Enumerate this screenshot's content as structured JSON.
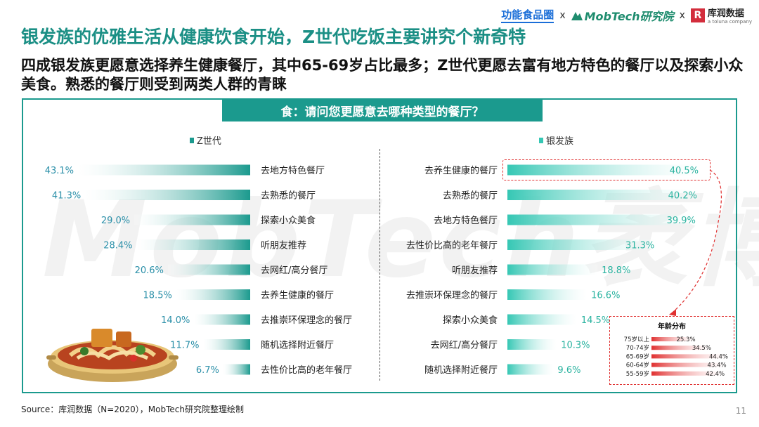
{
  "header": {
    "logos": [
      {
        "name": "功能食品圈"
      },
      {
        "name": "MobTech研究院"
      },
      {
        "name": "库润数据",
        "sub": "a toluna company"
      }
    ],
    "separator": "x",
    "title": "银发族的优雅生活从健康饮食开始，Z世代吃饭主要讲究个新奇特",
    "subtitle": "四成银发族更愿意选择养生健康餐厅，其中65-69岁占比最多；Z世代更愿去富有地方特色的餐厅以及探索小众美食。熟悉的餐厅则受到两类人群的青睐"
  },
  "question": "食：请问您更愿意去哪种类型的餐厅？",
  "watermark": "MobTech袤博",
  "chart_data": [
    {
      "type": "bar",
      "orientation": "horizontal",
      "series_name": "Z世代",
      "unit": "%",
      "categories": [
        "去地方特色餐厅",
        "去熟悉的餐厅",
        "探索小众美食",
        "听朋友推荐",
        "去网红/高分餐厅",
        "去养生健康的餐厅",
        "去推崇环保理念的餐厅",
        "随机选择附近餐厅",
        "去性价比高的老年餐厅"
      ],
      "values": [
        43.1,
        41.3,
        29.0,
        28.4,
        20.6,
        18.5,
        14.0,
        11.7,
        6.7
      ],
      "labels": [
        "43.1%",
        "41.3%",
        "29.0%",
        "28.4%",
        "20.6%",
        "18.5%",
        "14.0%",
        "11.7%",
        "6.7%"
      ],
      "color": "#1b9a8e"
    },
    {
      "type": "bar",
      "orientation": "horizontal",
      "series_name": "银发族",
      "unit": "%",
      "categories": [
        "去养生健康的餐厅",
        "去熟悉的餐厅",
        "去地方特色餐厅",
        "去性价比高的老年餐厅",
        "听朋友推荐",
        "去推崇环保理念的餐厅",
        "探索小众美食",
        "去网红/高分餐厅",
        "随机选择附近餐厅"
      ],
      "values": [
        40.5,
        40.2,
        39.9,
        31.3,
        18.8,
        16.6,
        14.5,
        10.3,
        9.6
      ],
      "labels": [
        "40.5%",
        "40.2%",
        "39.9%",
        "31.3%",
        "18.8%",
        "16.6%",
        "14.5%",
        "10.3%",
        "9.6%"
      ],
      "color": "#35c7b4"
    },
    {
      "type": "bar",
      "orientation": "horizontal",
      "title": "年龄分布",
      "unit": "%",
      "categories": [
        "75岁以上",
        "70-74岁",
        "65-69岁",
        "60-64岁",
        "55-59岁"
      ],
      "values": [
        25.3,
        34.5,
        44.4,
        43.4,
        42.4
      ],
      "labels": [
        "25.3%",
        "34.5%",
        "44.4%",
        "43.4%",
        "42.4%"
      ],
      "color": "#e03030"
    }
  ],
  "footer": {
    "source": "Source：库润数据（N=2020），MobTech研究院整理绘制",
    "page": "11"
  }
}
